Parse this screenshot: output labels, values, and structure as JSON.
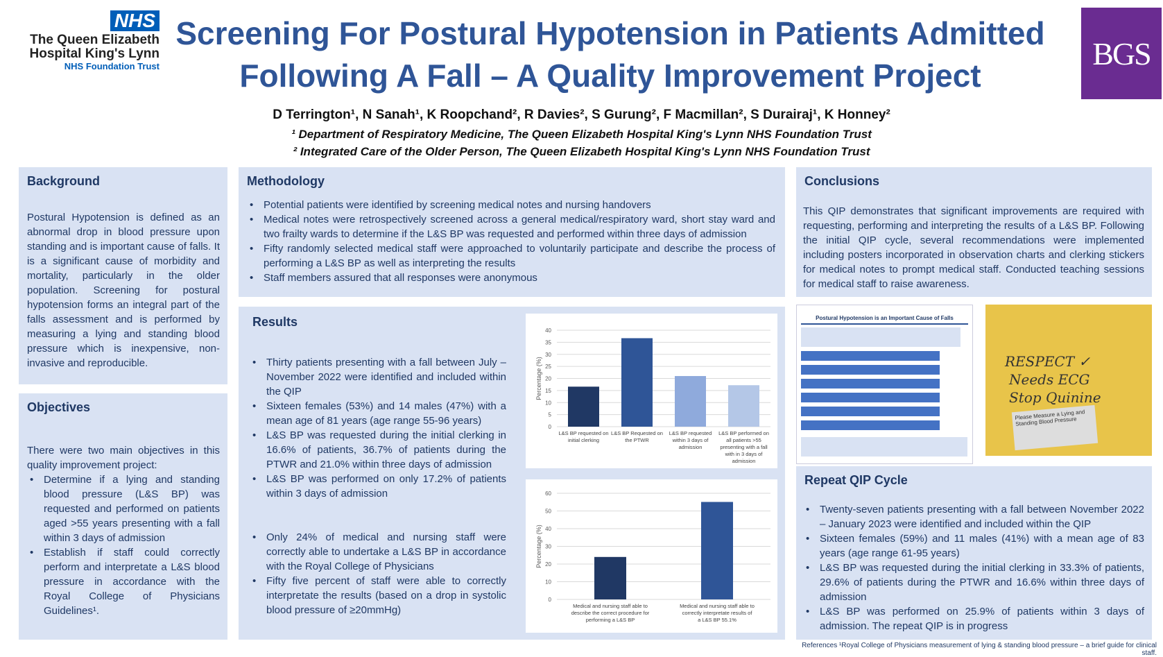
{
  "header": {
    "nhs_badge": "NHS",
    "hospital_name": "The Queen Elizabeth Hospital King's Lynn",
    "trust": "NHS Foundation Trust",
    "title_line1": "Screening For Postural Hypotension in Patients Admitted",
    "title_line2": "Following A Fall – A Quality Improvement Project",
    "bgs_logo": "BGS",
    "authors": "D Terrington¹, N Sanah¹, K Roopchand², R Davies², S Gurung², F Macmillan², S Durairaj¹, K Honney²",
    "affiliation1": "¹ Department of Respiratory Medicine, The Queen Elizabeth Hospital King's Lynn NHS Foundation Trust",
    "affiliation2": "² Integrated Care of the Older Person, The Queen Elizabeth Hospital King's Lynn NHS Foundation Trust"
  },
  "background": {
    "heading": "Background",
    "text": "Postural Hypotension is defined as an abnormal drop in blood pressure upon standing and is important cause of falls. It is a significant cause of morbidity and mortality, particularly in the older population. Screening for postural hypotension forms an integral part of the falls assessment and is performed by measuring a lying and standing blood pressure which is inexpensive, non-invasive and reproducible."
  },
  "objectives": {
    "heading": "Objectives",
    "intro": "There were two main objectives in this quality improvement project:",
    "items": [
      "Determine if a lying and standing blood pressure (L&S BP) was requested and performed on patients aged >55 years presenting with a fall within 3 days of admission",
      "Establish if staff could correctly perform and interpretate a L&S blood pressure in accordance with the Royal College of Physicians Guidelines¹."
    ]
  },
  "methodology": {
    "heading": "Methodology",
    "items": [
      "Potential patients were identified by screening medical notes and nursing handovers",
      "Medical notes were retrospectively screened across a general medical/respiratory ward, short stay ward and two frailty wards to determine if the L&S BP was requested and performed within three days of admission",
      "Fifty randomly selected medical staff were approached to voluntarily participate and describe the process of performing a L&S BP as well as interpreting the results",
      "Staff members assured that all responses were anonymous"
    ]
  },
  "results": {
    "heading": "Results",
    "items": [
      "Thirty patients presenting with a fall between July – November 2022 were identified and included within the QIP",
      "Sixteen females (53%) and 14 males (47%) with a mean age of 81 years (age range 55-96 years)",
      "L&S BP was requested during the initial clerking in 16.6% of patients, 36.7% of patients during the PTWR and 21.0% within three days of admission",
      "L&S BP was performed on only 17.2% of patients within 3 days of admission"
    ],
    "items2": [
      "Only 24% of medical and nursing staff were correctly able to undertake a L&S BP in accordance with the Royal College of Physicians",
      "Fifty five percent of staff were able to correctly interpretate the results (based on a drop in systolic blood pressure of ≥20mmHg)"
    ]
  },
  "conclusions": {
    "heading": "Conclusions",
    "text": "This QIP demonstrates that significant improvements are required with requesting, performing and interpreting the results of a L&S BP. Following the initial QIP cycle, several recommendations were implemented including posters incorporated in observation charts and clerking stickers for medical notes to prompt medical staff. Conducted teaching sessions for medical staff to raise awareness."
  },
  "poster_image": {
    "heading": "Postural Hypotension is an Important Cause of Falls"
  },
  "sticker_image": {
    "line1": "RESPECT ✓",
    "line2": "Needs ECG",
    "line3": "Stop Quinine",
    "label": "Please Measure a Lying and Standing Blood Pressure"
  },
  "repeat": {
    "heading": "Repeat QIP Cycle",
    "items": [
      "Twenty-seven patients presenting with a fall between November 2022 – January 2023 were identified and included within the QIP",
      "Sixteen females (59%) and 11 males (41%) with a mean age of 83 years (age range 61-95 years)",
      "L&S BP was requested during the initial clerking in 33.3% of patients, 29.6% of patients during the PTWR and 16.6% within three days of admission",
      "L&S BP was performed on 25.9% of patients within 3 days of admission.   The repeat QIP is in progress"
    ]
  },
  "references": "References ¹Royal College of Physicians measurement of lying & standing blood pressure – a brief guide for clinical staff.",
  "chart_data": [
    {
      "type": "bar",
      "title": "",
      "xlabel": "",
      "ylabel": "Percentage (%)",
      "ylim": [
        0,
        40
      ],
      "yticks": [
        0,
        5,
        10,
        15,
        20,
        25,
        30,
        35,
        40
      ],
      "grid": true,
      "categories": [
        "L&S BP requested on initial clerking",
        "L&S BP Requested on the PTWR",
        "L&S BP requested within 3 days of admission",
        "L&S BP performed on all patients >55 presenting with a fall with in 3 days of admission"
      ],
      "values": [
        16.6,
        36.7,
        21.0,
        17.2
      ],
      "colors": [
        "#203864",
        "#2f5597",
        "#8faadc",
        "#b4c7e7"
      ]
    },
    {
      "type": "bar",
      "title": "",
      "xlabel": "",
      "ylabel": "Percentage (%)",
      "ylim": [
        0,
        60
      ],
      "yticks": [
        0,
        10,
        20,
        30,
        40,
        50,
        60
      ],
      "grid": true,
      "categories": [
        "Medical and nursing staff able to describe the correct procedure for performing a L&S BP",
        "Medical and nursing staff able to correctly interpretate results of a L&S BP 55.1%"
      ],
      "values": [
        24,
        55.1
      ],
      "colors": [
        "#203864",
        "#2f5597"
      ]
    }
  ]
}
